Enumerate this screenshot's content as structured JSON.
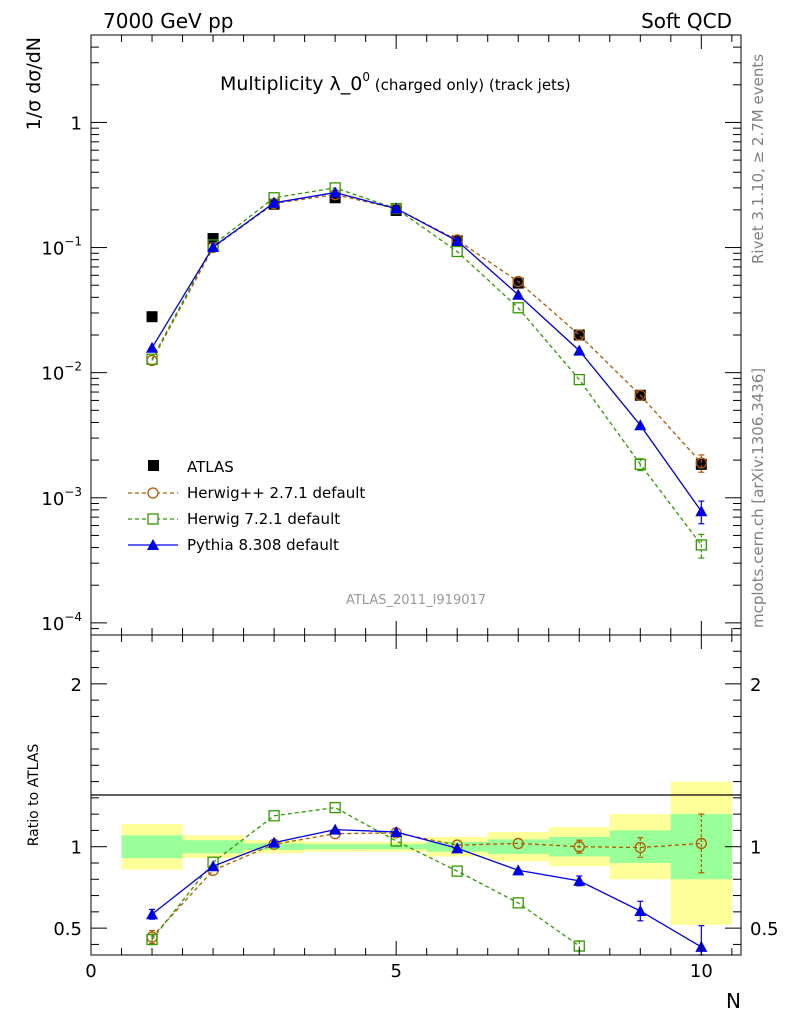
{
  "header": {
    "left": "7000 GeV pp",
    "right": "Soft QCD"
  },
  "side_labels": {
    "rivet": "Rivet 3.1.10, ≥ 2.7M events",
    "mcplots": "mcplots.cern.ch [arXiv:1306.3436]"
  },
  "analysis_label": "ATLAS_2011_I919017",
  "colors": {
    "atlas": "#000000",
    "herwigpp": "#b35900",
    "herwig7": "#339900",
    "pythia": "#0000e6",
    "band_inner": "#99ff99",
    "band_outer": "#ffff99"
  },
  "chart_data": [
    {
      "type": "scatter",
      "title": "Multiplicity λ_0⁰ (charged only) (track jets)",
      "title_main": "Multiplicity λ_0",
      "title_sup": "0",
      "title_rest": " (charged only) (track jets)",
      "ylabel": "1/σ dσ/dN",
      "yscale": "log",
      "ylim": [
        8e-05,
        5
      ],
      "xlim": [
        0,
        10.65
      ],
      "y_tick_labels": [
        {
          "value": 1,
          "base": "1",
          "exp": ""
        },
        {
          "value": 0.1,
          "base": "10",
          "exp": "−1"
        },
        {
          "value": 0.01,
          "base": "10",
          "exp": "−2"
        },
        {
          "value": 0.001,
          "base": "10",
          "exp": "−3"
        },
        {
          "value": 0.0001,
          "base": "10",
          "exp": "−4"
        }
      ],
      "legend_position": "bottom-left",
      "series": [
        {
          "name": "ATLAS",
          "key": "atlas",
          "style": "data",
          "x": [
            1,
            2,
            3,
            4,
            5,
            6,
            7,
            8,
            9,
            10
          ],
          "y": [
            0.028,
            0.118,
            0.222,
            0.25,
            0.198,
            0.113,
            0.052,
            0.02,
            0.0066,
            0.00185
          ],
          "err": [
            0,
            0,
            0,
            0,
            0,
            0,
            0,
            0,
            0,
            0
          ]
        },
        {
          "name": "Herwig++ 2.7.1 default",
          "key": "herwigpp",
          "style": "circle-dash",
          "x": [
            1,
            2,
            3,
            4,
            5,
            6,
            7,
            8,
            9,
            10
          ],
          "y": [
            0.0125,
            0.1,
            0.225,
            0.265,
            0.205,
            0.115,
            0.0535,
            0.02,
            0.0066,
            0.0019
          ],
          "err": [
            0,
            0,
            0,
            0,
            0,
            0,
            0,
            0,
            0,
            0.0003
          ]
        },
        {
          "name": "Herwig 7.2.1 default",
          "key": "herwig7",
          "style": "square-dash",
          "x": [
            1,
            2,
            3,
            4,
            5,
            6,
            7,
            8,
            9,
            10
          ],
          "y": [
            0.0128,
            0.105,
            0.25,
            0.3,
            0.205,
            0.093,
            0.033,
            0.0088,
            0.00185,
            0.00042
          ],
          "err": [
            0,
            0,
            0,
            0,
            0,
            0,
            0,
            0,
            0.0002,
            9e-05
          ]
        },
        {
          "name": "Pythia 8.308 default",
          "key": "pythia",
          "style": "triangle-solid",
          "x": [
            1,
            2,
            3,
            4,
            5,
            6,
            7,
            8,
            9,
            10
          ],
          "y": [
            0.0158,
            0.101,
            0.228,
            0.275,
            0.205,
            0.113,
            0.042,
            0.015,
            0.0038,
            0.00078
          ],
          "err": [
            0,
            0,
            0,
            0,
            0,
            0,
            0,
            0,
            0,
            0.00016
          ]
        }
      ]
    },
    {
      "type": "scatter",
      "ylabel": "Ratio to ATLAS",
      "xlabel": "N",
      "xlim": [
        0,
        10.65
      ],
      "ylim": [
        0.335,
        2.3
      ],
      "x_ticks": [
        0,
        5,
        10
      ],
      "y_ticks": [
        0.5,
        1,
        2
      ],
      "y_tick_labels": [
        "0.5",
        "1",
        "2"
      ],
      "bands": [
        {
          "xmin": 0.5,
          "xmax": 1.5,
          "inner": [
            0.93,
            1.07
          ],
          "outer": [
            0.86,
            1.14
          ]
        },
        {
          "xmin": 1.5,
          "xmax": 2.5,
          "inner": [
            0.96,
            1.04
          ],
          "outer": [
            0.93,
            1.07
          ]
        },
        {
          "xmin": 2.5,
          "xmax": 3.5,
          "inner": [
            0.98,
            1.02
          ],
          "outer": [
            0.96,
            1.04
          ]
        },
        {
          "xmin": 3.5,
          "xmax": 4.5,
          "inner": [
            0.985,
            1.015
          ],
          "outer": [
            0.97,
            1.03
          ]
        },
        {
          "xmin": 4.5,
          "xmax": 5.5,
          "inner": [
            0.985,
            1.015
          ],
          "outer": [
            0.97,
            1.03
          ]
        },
        {
          "xmin": 5.5,
          "xmax": 6.5,
          "inner": [
            0.97,
            1.03
          ],
          "outer": [
            0.94,
            1.06
          ]
        },
        {
          "xmin": 6.5,
          "xmax": 7.5,
          "inner": [
            0.955,
            1.045
          ],
          "outer": [
            0.91,
            1.09
          ]
        },
        {
          "xmin": 7.5,
          "xmax": 8.5,
          "inner": [
            0.94,
            1.06
          ],
          "outer": [
            0.88,
            1.12
          ]
        },
        {
          "xmin": 8.5,
          "xmax": 9.5,
          "inner": [
            0.9,
            1.1
          ],
          "outer": [
            0.8,
            1.2
          ]
        },
        {
          "xmin": 9.5,
          "xmax": 10.5,
          "inner": [
            0.8,
            1.2
          ],
          "outer": [
            0.52,
            1.4
          ]
        }
      ],
      "series": [
        {
          "name": "Herwig++ 2.7.1 default",
          "key": "herwigpp",
          "style": "circle-dash",
          "x": [
            1,
            2,
            3,
            4,
            5,
            6,
            7,
            8,
            9,
            10
          ],
          "y": [
            0.445,
            0.855,
            1.015,
            1.08,
            1.085,
            1.01,
            1.02,
            1.0,
            0.995,
            1.02
          ],
          "err": [
            0.04,
            0,
            0,
            0,
            0,
            0,
            0,
            0.04,
            0.06,
            0.18
          ]
        },
        {
          "name": "Herwig 7.2.1 default",
          "key": "herwig7",
          "style": "square-dash",
          "x": [
            1,
            2,
            3,
            4,
            5,
            6,
            7,
            8
          ],
          "y": [
            0.43,
            0.905,
            1.19,
            1.24,
            1.035,
            0.85,
            0.655,
            0.39
          ],
          "err": [
            0.03,
            0,
            0,
            0,
            0,
            0,
            0,
            0.03
          ]
        },
        {
          "name": "Pythia 8.308 default",
          "key": "pythia",
          "style": "triangle-solid",
          "x": [
            1,
            2,
            3,
            4,
            5,
            6,
            7,
            8,
            9,
            10
          ],
          "y": [
            0.585,
            0.88,
            1.025,
            1.105,
            1.09,
            0.99,
            0.855,
            0.79,
            0.605,
            0.385
          ],
          "err": [
            0.03,
            0,
            0,
            0,
            0,
            0,
            0,
            0.03,
            0.06,
            0.13
          ]
        }
      ]
    }
  ]
}
